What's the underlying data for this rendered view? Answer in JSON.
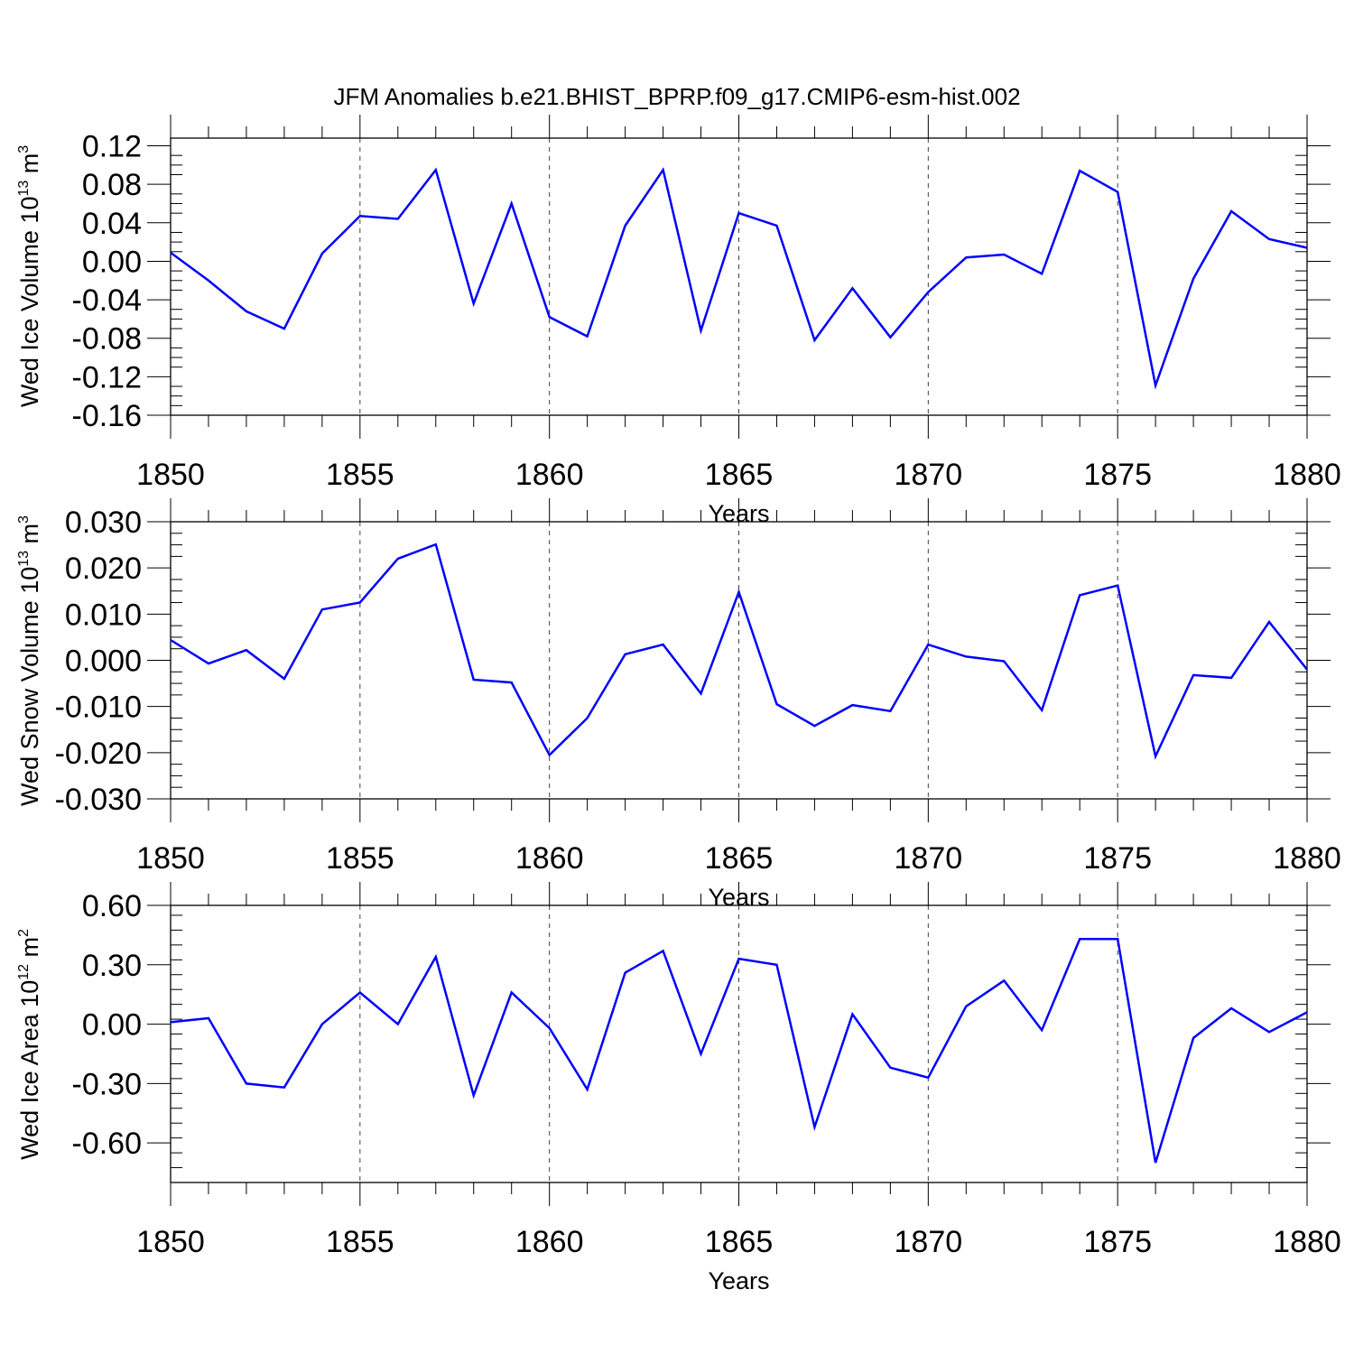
{
  "title": "JFM Anomalies b.e21.BHIST_BPRP.f09_g17.CMIP6-esm-hist.002",
  "colors": {
    "series": "#0000ff",
    "axis": "#000000",
    "grid": "#000000"
  },
  "chart_data": [
    {
      "type": "line",
      "ylabel": {
        "main": "Wed Ice Volume 10",
        "exp": "13",
        "unit": " m",
        "unit_exp": "3"
      },
      "xlabel": "Years",
      "xlim": [
        1850,
        1880
      ],
      "ylim": [
        -0.16,
        0.128
      ],
      "xticks": [
        1850,
        1855,
        1860,
        1865,
        1870,
        1875,
        1880
      ],
      "yticks": [
        -0.16,
        -0.12,
        -0.08,
        -0.04,
        0.0,
        0.04,
        0.08,
        0.12
      ],
      "ytick_labels": [
        "-0.16",
        "-0.12",
        "-0.08",
        "-0.04",
        "0.00",
        "0.04",
        "0.08",
        "0.12"
      ],
      "series": [
        {
          "name": "Wed Ice Volume",
          "x": [
            1850,
            1851,
            1852,
            1853,
            1854,
            1855,
            1856,
            1857,
            1858,
            1859,
            1860,
            1861,
            1862,
            1863,
            1864,
            1865,
            1866,
            1867,
            1868,
            1869,
            1870,
            1871,
            1872,
            1873,
            1874,
            1875,
            1876,
            1877,
            1878,
            1879,
            1880
          ],
          "values": [
            0.009,
            -0.02,
            -0.052,
            -0.07,
            0.008,
            0.047,
            0.044,
            0.095,
            -0.044,
            0.06,
            -0.058,
            -0.078,
            0.037,
            0.095,
            -0.072,
            0.05,
            0.037,
            -0.082,
            -0.028,
            -0.079,
            -0.032,
            0.004,
            0.007,
            -0.013,
            0.094,
            0.072,
            -0.129,
            -0.018,
            0.052,
            0.023,
            0.014
          ]
        }
      ]
    },
    {
      "type": "line",
      "ylabel": {
        "main": "Wed Snow Volume 10",
        "exp": "13",
        "unit": " m",
        "unit_exp": "3"
      },
      "xlabel": "Years",
      "xlim": [
        1850,
        1880
      ],
      "ylim": [
        -0.03,
        0.03
      ],
      "xticks": [
        1850,
        1855,
        1860,
        1865,
        1870,
        1875,
        1880
      ],
      "yticks": [
        -0.03,
        -0.02,
        -0.01,
        0.0,
        0.01,
        0.02,
        0.03
      ],
      "ytick_labels": [
        "-0.030",
        "-0.020",
        "-0.010",
        "0.000",
        "0.010",
        "0.020",
        "0.030"
      ],
      "series": [
        {
          "name": "Wed Snow Volume",
          "x": [
            1850,
            1851,
            1852,
            1853,
            1854,
            1855,
            1856,
            1857,
            1858,
            1859,
            1860,
            1861,
            1862,
            1863,
            1864,
            1865,
            1866,
            1867,
            1868,
            1869,
            1870,
            1871,
            1872,
            1873,
            1874,
            1875,
            1876,
            1877,
            1878,
            1879,
            1880
          ],
          "values": [
            0.0044,
            -0.0007,
            0.0022,
            -0.004,
            0.011,
            0.0125,
            0.022,
            0.0251,
            -0.0042,
            -0.0048,
            -0.0205,
            -0.0125,
            0.0013,
            0.0034,
            -0.0072,
            0.0148,
            -0.0095,
            -0.0142,
            -0.0097,
            -0.011,
            0.0034,
            0.0008,
            -0.0002,
            -0.0108,
            0.0141,
            0.0162,
            -0.0208,
            -0.0032,
            -0.0038,
            0.0083,
            -0.002
          ]
        }
      ]
    },
    {
      "type": "line",
      "ylabel": {
        "main": "Wed Ice Area 10",
        "exp": "12",
        "unit": " m",
        "unit_exp": "2"
      },
      "xlabel": "Years",
      "xlim": [
        1850,
        1880
      ],
      "ylim": [
        -0.8,
        0.6
      ],
      "xticks": [
        1850,
        1855,
        1860,
        1865,
        1870,
        1875,
        1880
      ],
      "yticks": [
        -0.6,
        -0.3,
        0.0,
        0.3,
        0.6
      ],
      "ytick_labels": [
        "-0.60",
        "-0.30",
        "0.00",
        "0.30",
        "0.60"
      ],
      "series": [
        {
          "name": "Wed Ice Area",
          "x": [
            1850,
            1851,
            1852,
            1853,
            1854,
            1855,
            1856,
            1857,
            1858,
            1859,
            1860,
            1861,
            1862,
            1863,
            1864,
            1865,
            1866,
            1867,
            1868,
            1869,
            1870,
            1871,
            1872,
            1873,
            1874,
            1875,
            1876,
            1877,
            1878,
            1879,
            1880
          ],
          "values": [
            0.01,
            0.03,
            -0.3,
            -0.32,
            0.0,
            0.16,
            0.0,
            0.34,
            -0.36,
            0.16,
            -0.02,
            -0.33,
            0.26,
            0.37,
            -0.15,
            0.33,
            0.3,
            -0.52,
            0.05,
            -0.22,
            -0.27,
            0.09,
            0.22,
            -0.03,
            0.43,
            0.43,
            -0.7,
            -0.07,
            0.08,
            -0.04,
            0.06
          ]
        }
      ]
    }
  ]
}
